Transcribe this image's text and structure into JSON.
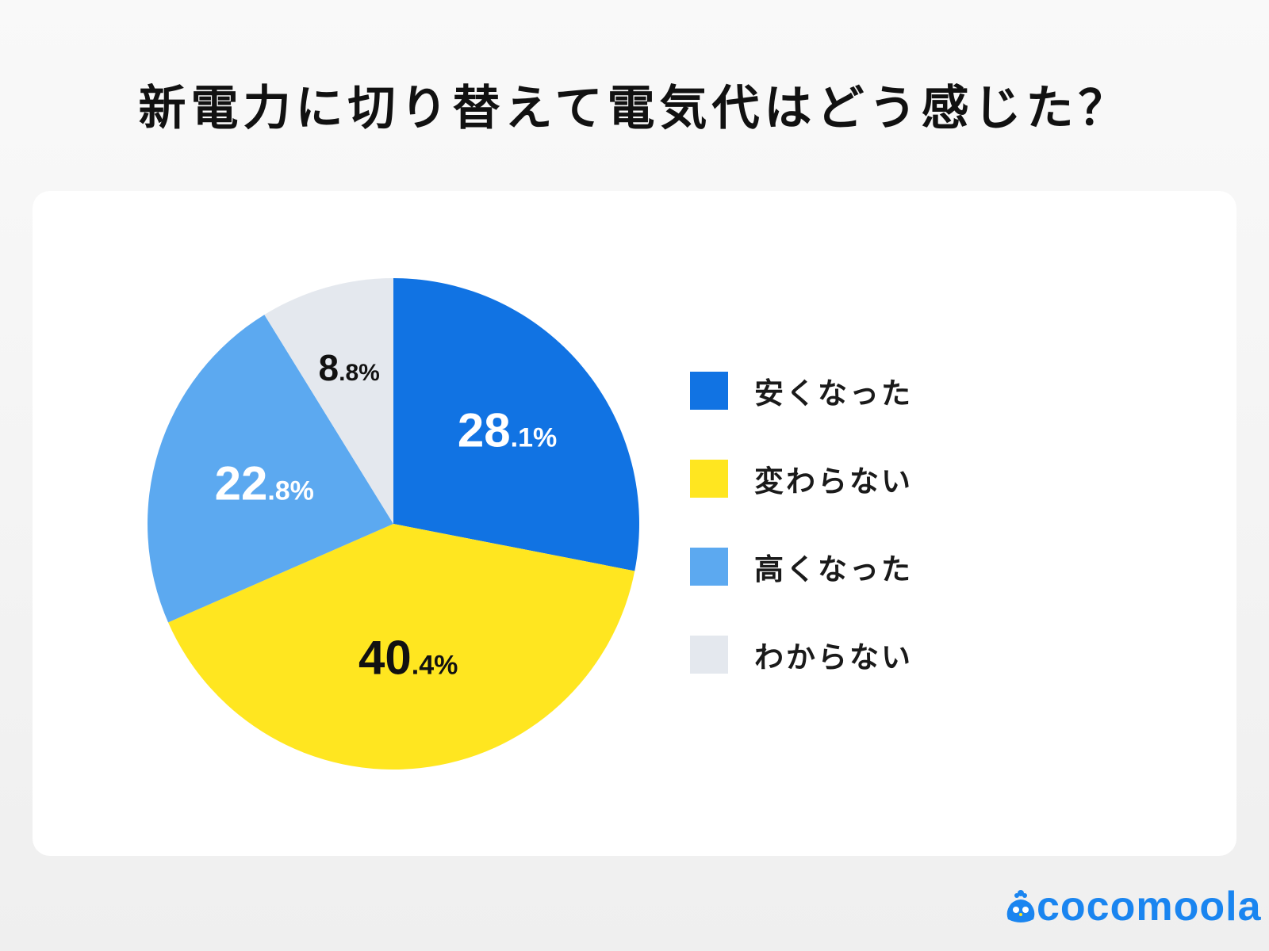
{
  "title": "新電力に切り替えて電気代はどう感じた？",
  "chart_data": {
    "type": "pie",
    "title": "新電力に切り替えて電気代はどう感じた？",
    "start_angle": "12 o'clock, clockwise",
    "legend_placement": "right",
    "slices": [
      {
        "label": "安くなった",
        "value": 28.1,
        "int": "28",
        "dec": ".1%",
        "color": "#1173e3",
        "text_color": "#ffffff"
      },
      {
        "label": "変わらない",
        "value": 40.4,
        "int": "40",
        "dec": ".4%",
        "color": "#ffe620",
        "text_color": "#111111"
      },
      {
        "label": "高くなった",
        "value": 22.8,
        "int": "22",
        "dec": ".8%",
        "color": "#5ca9f0",
        "text_color": "#ffffff"
      },
      {
        "label": "わからない",
        "value": 8.8,
        "int": "8",
        "dec": ".8%",
        "color": "#e4e8ee",
        "text_color": "#111111"
      }
    ]
  },
  "logo": {
    "text": "cocomoola",
    "color": "#1a85f0"
  }
}
